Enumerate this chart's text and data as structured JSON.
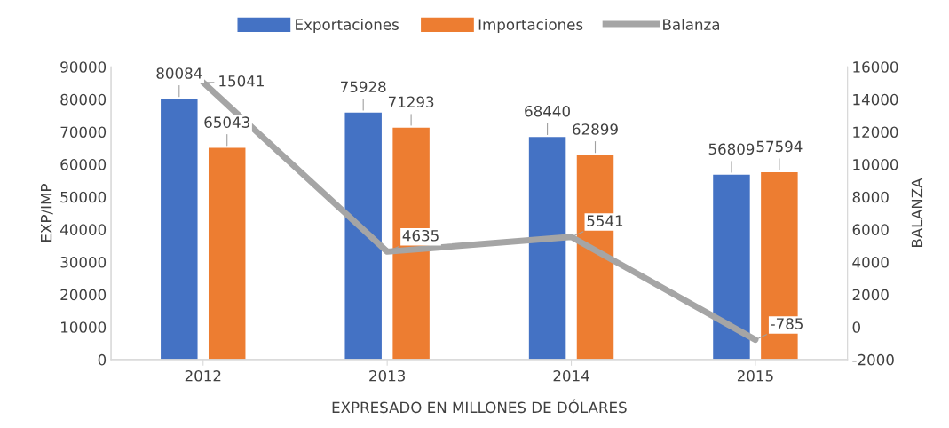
{
  "chart_data": {
    "type": "bar",
    "categories": [
      "2012",
      "2013",
      "2014",
      "2015"
    ],
    "series": [
      {
        "name": "Exportaciones",
        "color": "#4472c4",
        "values": [
          80084,
          75928,
          68440,
          56809
        ]
      },
      {
        "name": "Importaciones",
        "color": "#ed7d31",
        "values": [
          65043,
          71293,
          62899,
          57594
        ]
      },
      {
        "name": "Balanza",
        "type": "line",
        "axis": "y2",
        "color": "#a5a5a5",
        "values": [
          15041,
          4635,
          5541,
          -785
        ]
      }
    ],
    "xlabel": "EXPRESADO EN MILLONES DE DÓLARES",
    "ylabel": "EXP/IMP",
    "y2label": "BALANZA",
    "ylim": [
      0,
      90000
    ],
    "yticks": [
      0,
      10000,
      20000,
      30000,
      40000,
      50000,
      60000,
      70000,
      80000,
      90000
    ],
    "y2lim": [
      -2000,
      16000
    ],
    "y2ticks": [
      -2000,
      0,
      2000,
      4000,
      6000,
      8000,
      10000,
      12000,
      14000,
      16000
    ],
    "data_labels": true,
    "legend": "top",
    "grid": false
  }
}
